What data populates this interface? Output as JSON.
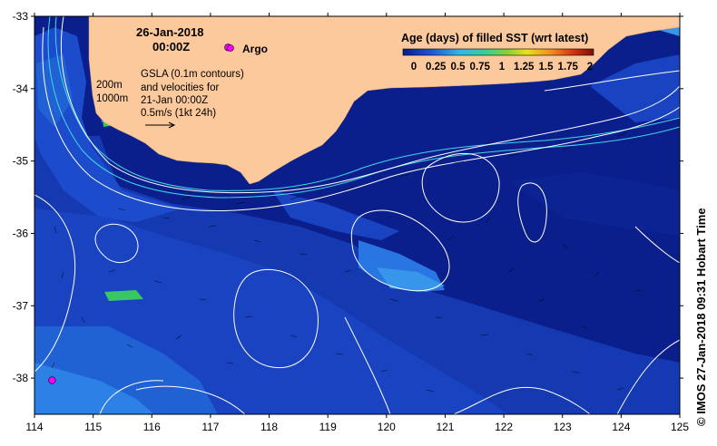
{
  "date": "26-Jan-2018",
  "time": "00:00Z",
  "argo_label": "Argo",
  "legend": {
    "title": "Age (days) of filled SST (wrt latest)",
    "ticks": [
      "0",
      "0.25",
      "0.5",
      "0.75",
      "1",
      "1.25",
      "1.5",
      "1.75",
      "2"
    ]
  },
  "depth_labels": [
    "200m",
    "1000m"
  ],
  "gsla_text": [
    "GSLA (0.1m contours)",
    "and velocities for",
    "21-Jan 00:00Z",
    "0.5m/s (1kt 24h)"
  ],
  "x_axis": {
    "min": 114,
    "max": 125,
    "labels": [
      "114",
      "115",
      "116",
      "117",
      "118",
      "119",
      "120",
      "121",
      "122",
      "123",
      "124",
      "125"
    ]
  },
  "y_axis": {
    "min": -38.5,
    "max": -33,
    "labels": [
      "-33",
      "-34",
      "-35",
      "-36",
      "-37",
      "-38"
    ]
  },
  "credit": "©  IMOS 27-Jan-2018 09:31 Hobart Time",
  "argo_floats": [
    {
      "lon": 117.3,
      "lat": -33.43
    },
    {
      "lon": 114.3,
      "lat": -38.03
    }
  ],
  "colors": {
    "land": "#fcc99c",
    "ocean_dark": "#0b1f8c",
    "ocean_mid": "#1a44c4",
    "ocean_light": "#2f86ea",
    "argo": "#ff00ff"
  }
}
